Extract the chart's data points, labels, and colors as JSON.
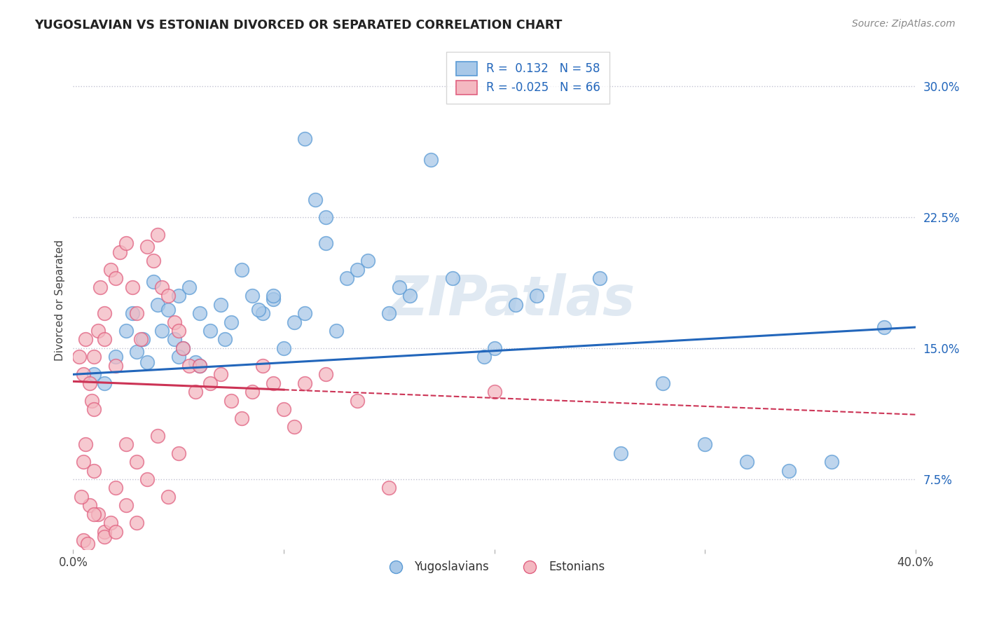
{
  "title": "YUGOSLAVIAN VS ESTONIAN DIVORCED OR SEPARATED CORRELATION CHART",
  "source": "Source: ZipAtlas.com",
  "ylabel": "Divorced or Separated",
  "xlim": [
    0.0,
    40.0
  ],
  "ylim": [
    3.5,
    32.0
  ],
  "yticks": [
    7.5,
    15.0,
    22.5,
    30.0
  ],
  "ytick_labels": [
    "7.5%",
    "15.0%",
    "22.5%",
    "30.0%"
  ],
  "legend_blue_r": "0.132",
  "legend_blue_n": "58",
  "legend_pink_r": "-0.025",
  "legend_pink_n": "66",
  "legend_label_blue": "Yugoslavians",
  "legend_label_pink": "Estonians",
  "blue_color": "#a8c8e8",
  "blue_edge_color": "#5b9bd5",
  "pink_color": "#f4b8c1",
  "pink_edge_color": "#e06080",
  "blue_line_color": "#2266bb",
  "pink_line_color": "#cc3355",
  "watermark": "ZIPatlas",
  "blue_trend": [
    13.5,
    16.2
  ],
  "pink_trend_solid_end_x": 10.0,
  "pink_trend": [
    13.1,
    11.2
  ],
  "blue_scatter": [
    [
      1.0,
      13.5
    ],
    [
      1.5,
      13.0
    ],
    [
      2.0,
      14.5
    ],
    [
      2.5,
      16.0
    ],
    [
      2.8,
      17.0
    ],
    [
      3.0,
      14.8
    ],
    [
      3.3,
      15.5
    ],
    [
      3.5,
      14.2
    ],
    [
      3.8,
      18.8
    ],
    [
      4.0,
      17.5
    ],
    [
      4.2,
      16.0
    ],
    [
      4.5,
      17.2
    ],
    [
      4.8,
      15.5
    ],
    [
      5.0,
      18.0
    ],
    [
      5.2,
      15.0
    ],
    [
      5.5,
      18.5
    ],
    [
      5.8,
      14.2
    ],
    [
      6.0,
      17.0
    ],
    [
      6.5,
      16.0
    ],
    [
      7.0,
      17.5
    ],
    [
      7.5,
      16.5
    ],
    [
      8.0,
      19.5
    ],
    [
      8.5,
      18.0
    ],
    [
      9.0,
      17.0
    ],
    [
      9.5,
      17.8
    ],
    [
      10.0,
      15.0
    ],
    [
      10.5,
      16.5
    ],
    [
      11.0,
      27.0
    ],
    [
      11.5,
      23.5
    ],
    [
      12.0,
      22.5
    ],
    [
      12.5,
      16.0
    ],
    [
      13.0,
      19.0
    ],
    [
      14.0,
      20.0
    ],
    [
      15.0,
      17.0
    ],
    [
      16.0,
      18.0
    ],
    [
      17.0,
      25.8
    ],
    [
      18.0,
      19.0
    ],
    [
      20.0,
      15.0
    ],
    [
      21.0,
      17.5
    ],
    [
      25.0,
      19.0
    ],
    [
      28.0,
      13.0
    ],
    [
      30.0,
      9.5
    ],
    [
      32.0,
      8.5
    ],
    [
      36.0,
      8.5
    ],
    [
      38.5,
      16.2
    ],
    [
      6.0,
      14.0
    ],
    [
      7.2,
      15.5
    ],
    [
      8.8,
      17.2
    ],
    [
      13.5,
      19.5
    ],
    [
      15.5,
      18.5
    ],
    [
      5.0,
      14.5
    ],
    [
      9.5,
      18.0
    ],
    [
      11.0,
      17.0
    ],
    [
      12.0,
      21.0
    ],
    [
      19.5,
      14.5
    ],
    [
      22.0,
      18.0
    ],
    [
      26.0,
      9.0
    ],
    [
      34.0,
      8.0
    ]
  ],
  "pink_scatter": [
    [
      0.3,
      14.5
    ],
    [
      0.5,
      13.5
    ],
    [
      0.6,
      15.5
    ],
    [
      0.8,
      13.0
    ],
    [
      0.9,
      12.0
    ],
    [
      1.0,
      14.5
    ],
    [
      1.0,
      11.5
    ],
    [
      1.2,
      16.0
    ],
    [
      1.3,
      18.5
    ],
    [
      1.5,
      17.0
    ],
    [
      1.5,
      15.5
    ],
    [
      1.8,
      19.5
    ],
    [
      2.0,
      14.0
    ],
    [
      2.0,
      19.0
    ],
    [
      2.2,
      20.5
    ],
    [
      2.5,
      21.0
    ],
    [
      2.8,
      18.5
    ],
    [
      3.0,
      17.0
    ],
    [
      3.2,
      15.5
    ],
    [
      3.5,
      20.8
    ],
    [
      3.8,
      20.0
    ],
    [
      4.0,
      21.5
    ],
    [
      4.2,
      18.5
    ],
    [
      4.5,
      18.0
    ],
    [
      4.8,
      16.5
    ],
    [
      5.0,
      16.0
    ],
    [
      5.2,
      15.0
    ],
    [
      5.5,
      14.0
    ],
    [
      5.8,
      12.5
    ],
    [
      6.0,
      14.0
    ],
    [
      6.5,
      13.0
    ],
    [
      7.0,
      13.5
    ],
    [
      7.5,
      12.0
    ],
    [
      8.0,
      11.0
    ],
    [
      8.5,
      12.5
    ],
    [
      9.0,
      14.0
    ],
    [
      9.5,
      13.0
    ],
    [
      10.0,
      11.5
    ],
    [
      10.5,
      10.5
    ],
    [
      11.0,
      13.0
    ],
    [
      12.0,
      13.5
    ],
    [
      13.5,
      12.0
    ],
    [
      15.0,
      7.0
    ],
    [
      20.0,
      12.5
    ],
    [
      0.5,
      8.5
    ],
    [
      0.8,
      6.0
    ],
    [
      1.0,
      8.0
    ],
    [
      1.2,
      5.5
    ],
    [
      1.5,
      4.5
    ],
    [
      1.8,
      5.0
    ],
    [
      2.0,
      7.0
    ],
    [
      2.5,
      9.5
    ],
    [
      3.0,
      8.5
    ],
    [
      3.5,
      7.5
    ],
    [
      4.0,
      10.0
    ],
    [
      4.5,
      6.5
    ],
    [
      5.0,
      9.0
    ],
    [
      0.5,
      4.0
    ],
    [
      0.7,
      3.8
    ],
    [
      1.0,
      5.5
    ],
    [
      1.5,
      4.2
    ],
    [
      2.0,
      4.5
    ],
    [
      2.5,
      6.0
    ],
    [
      3.0,
      5.0
    ],
    [
      0.4,
      6.5
    ],
    [
      0.6,
      9.5
    ]
  ]
}
